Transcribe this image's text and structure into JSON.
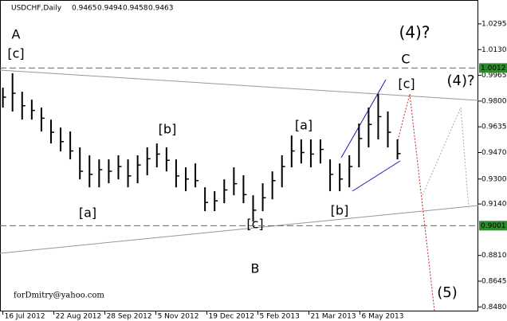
{
  "chart_data": {
    "type": "ohlc",
    "symbol": "USDCHF,Daily",
    "quote": [
      0.9465,
      0.9494,
      0.9458,
      0.9463
    ],
    "watermark": "forDmitry@yahoo.com",
    "bar_color": "#000000",
    "high": [
      0.9886,
      0.9978,
      0.986,
      0.9809,
      0.9758,
      0.9681,
      0.963,
      0.9605,
      0.9503,
      0.9452,
      0.9426,
      0.9426,
      0.9452,
      0.9426,
      0.9452,
      0.9503,
      0.9528,
      0.9503,
      0.9426,
      0.9375,
      0.94,
      0.9247,
      0.9222,
      0.9298,
      0.9375,
      0.9324,
      0.9196,
      0.9273,
      0.9349,
      0.9452,
      0.9579,
      0.9554,
      0.9554,
      0.9554,
      0.9426,
      0.94,
      0.9452,
      0.9656,
      0.9758,
      0.9845,
      0.9733,
      0.9554
    ],
    "low": [
      0.9758,
      0.9733,
      0.9681,
      0.9681,
      0.9605,
      0.9528,
      0.9477,
      0.9426,
      0.9298,
      0.9247,
      0.9247,
      0.9273,
      0.9298,
      0.9247,
      0.9273,
      0.9324,
      0.9375,
      0.9349,
      0.9247,
      0.9222,
      0.9247,
      0.9094,
      0.9094,
      0.9145,
      0.9196,
      0.9145,
      0.9027,
      0.9094,
      0.917,
      0.9247,
      0.9375,
      0.94,
      0.9375,
      0.94,
      0.9222,
      0.9222,
      0.9247,
      0.9375,
      0.9503,
      0.9554,
      0.9503,
      0.9426
    ],
    "close": [
      0.9825,
      0.985,
      0.977,
      0.974,
      0.969,
      0.96,
      0.954,
      0.948,
      0.935,
      0.933,
      0.936,
      0.935,
      0.938,
      0.932,
      0.939,
      0.943,
      0.946,
      0.942,
      0.932,
      0.93,
      0.929,
      0.915,
      0.916,
      0.923,
      0.927,
      0.92,
      0.91,
      0.918,
      0.929,
      0.938,
      0.948,
      0.947,
      0.946,
      0.949,
      0.933,
      0.93,
      0.938,
      0.956,
      0.965,
      0.97,
      0.96,
      0.9463
    ],
    "xlim": [
      -0.3,
      49.4
    ],
    "xticks": [
      {
        "value": 0,
        "label": "16 Jul 2012"
      },
      {
        "value": 5.3,
        "label": "22 Aug 2012"
      },
      {
        "value": 10.6,
        "label": "28 Sep 2012"
      },
      {
        "value": 15.9,
        "label": "5 Nov 2012"
      },
      {
        "value": 21.2,
        "label": "19 Dec 2012"
      },
      {
        "value": 26.5,
        "label": "5 Feb 2013"
      },
      {
        "value": 31.8,
        "label": "21 Mar 2013"
      },
      {
        "value": 37.1,
        "label": "6 May 2013"
      }
    ],
    "ylim": [
      0.8451,
      1.0448
    ],
    "yticks": [
      1.0295,
      {
        "value": 1.013,
        "label": "1.0130"
      },
      0.9965,
      {
        "value": 0.98,
        "label": "0.9800"
      },
      0.9635,
      {
        "value": 0.947,
        "label": "0.9470"
      },
      {
        "value": 0.93,
        "label": "0.9300"
      },
      {
        "value": 0.914,
        "label": "0.9140"
      },
      {
        "value": 0.881,
        "label": "0.8810"
      },
      0.8645,
      {
        "value": 0.848,
        "label": "0.8480"
      }
    ],
    "levels": [
      1.0012,
      0.9001
    ],
    "level_color": "#2e8b2e",
    "annotations": [
      {
        "text": "A",
        "color": "#8b3030"
      },
      {
        "text": "[c]",
        "color": "#2e8b2e"
      },
      {
        "text": "[b]",
        "color": "#2e8b2e"
      },
      {
        "text": "[a]",
        "color": "#2e8b2e"
      },
      {
        "text": "[c]",
        "color": "#2e8b2e"
      },
      {
        "text": "B",
        "color": "#8b3030"
      },
      {
        "text": "[a]",
        "color": "#2e8b2e"
      },
      {
        "text": "[b]",
        "color": "#2e8b2e"
      },
      {
        "text": "[c]",
        "color": "#2e8b2e"
      },
      {
        "text": "C",
        "color": "#b03030"
      },
      {
        "text": "(4)?",
        "color": "#1a1aaa"
      },
      {
        "text": "(4)?",
        "color": "#aaaaaa"
      },
      {
        "text": "(5)",
        "color": "#1a1aaa"
      }
    ]
  }
}
